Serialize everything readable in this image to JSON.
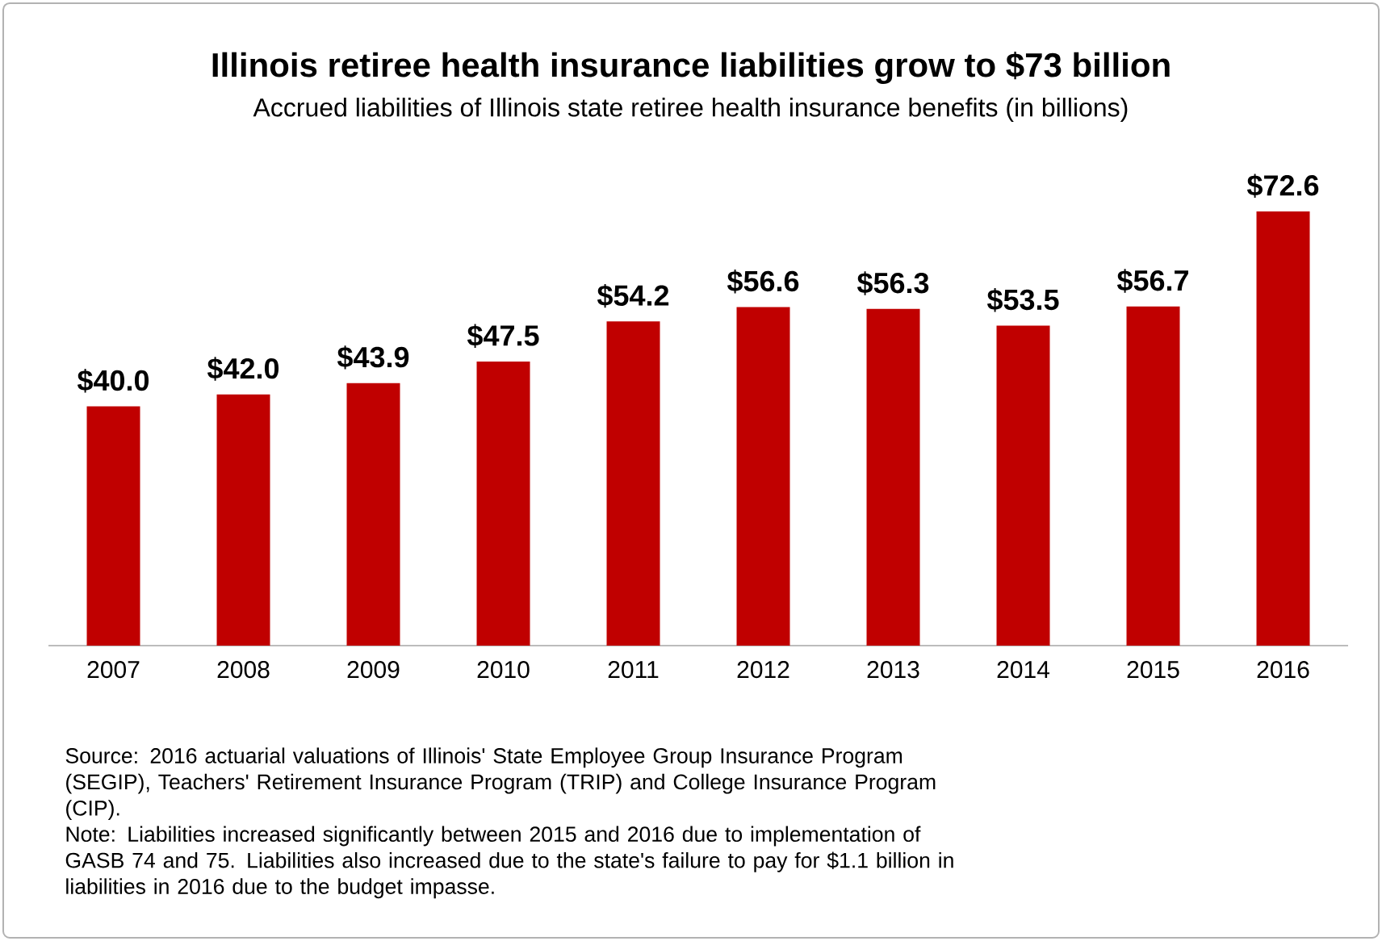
{
  "chart_data": {
    "type": "bar",
    "title": "Illinois retiree health insurance liabilities grow to $73 billion",
    "subtitle": "Accrued liabilities of Illinois state retiree health insurance benefits (in billions)",
    "categories": [
      "2007",
      "2008",
      "2009",
      "2010",
      "2011",
      "2012",
      "2013",
      "2014",
      "2015",
      "2016"
    ],
    "values": [
      40.0,
      42.0,
      43.9,
      47.5,
      54.2,
      56.6,
      56.3,
      53.5,
      56.7,
      72.6
    ],
    "value_labels": [
      "$40.0",
      "$42.0",
      "$43.9",
      "$47.5",
      "$54.2",
      "$56.6",
      "$56.3",
      "$53.5",
      "$56.7",
      "$72.6"
    ],
    "color": "#c00000",
    "tick_labels": "x",
    "annotations": [
      "Source: 2016 actuarial valuations of Illinois' State Employee Group Insurance Program (SEGIP), Teachers' Retirement Insurance Program (TRIP) and College Insurance Program (CIP).",
      "Note: Liabilities increased significantly between 2015 and 2016 due to implementation of GASB 74 and 75. Liabilities also increased due to the state's failure to pay for $1.1 billion in liabilities in 2016 due to the budget impasse."
    ]
  }
}
